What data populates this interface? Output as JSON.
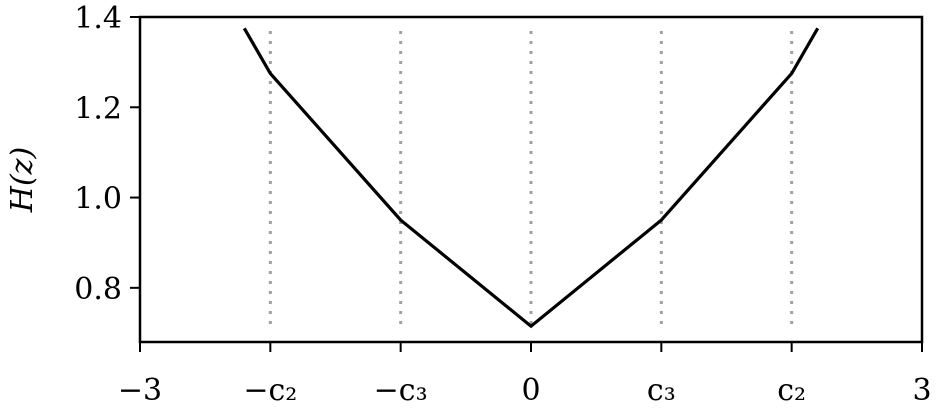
{
  "chart_data": {
    "type": "line",
    "title": "",
    "xlabel": "",
    "ylabel": "H(z)",
    "xlim": [
      -3,
      3
    ],
    "ylim": [
      0.68,
      1.4
    ],
    "grid": false,
    "x_ticks": [
      {
        "value": -3,
        "label": "−3"
      },
      {
        "value": -2,
        "label": "−c₂"
      },
      {
        "value": -1,
        "label": "−c₃"
      },
      {
        "value": 0,
        "label": "0"
      },
      {
        "value": 1,
        "label": "c₃"
      },
      {
        "value": 2,
        "label": "c₂"
      },
      {
        "value": 3,
        "label": "3"
      }
    ],
    "y_ticks": [
      {
        "value": 0.8,
        "label": "0.8"
      },
      {
        "value": 1.0,
        "label": "1.0"
      },
      {
        "value": 1.2,
        "label": "1.2"
      },
      {
        "value": 1.4,
        "label": "1.4"
      }
    ],
    "vertical_reference_lines": [
      -2,
      -1,
      0,
      1,
      2
    ],
    "series": [
      {
        "x": [
          -2.2,
          -2,
          -1,
          0,
          1,
          2,
          2.2
        ],
        "y": [
          1.375,
          1.275,
          0.95,
          0.715,
          0.95,
          1.275,
          1.375
        ],
        "color": "#000000"
      }
    ],
    "reference_line_color": "#a0a0a0"
  }
}
